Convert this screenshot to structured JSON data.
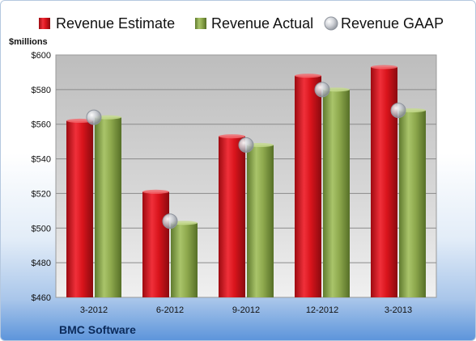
{
  "chart_data": {
    "type": "bar",
    "categories": [
      "3-2012",
      "6-2012",
      "9-2012",
      "12-2012",
      "3-2013"
    ],
    "series": [
      {
        "name": "Revenue Estimate",
        "values": [
          562,
          521,
          553,
          588,
          593
        ],
        "color": "#d9141c"
      },
      {
        "name": "Revenue Actual",
        "values": [
          564,
          503,
          548,
          580,
          568
        ],
        "color": "#8faa4e"
      },
      {
        "name": "Revenue GAAP",
        "values": [
          564,
          504,
          548,
          580,
          568
        ],
        "color": "#b8bcc4"
      }
    ],
    "ylabel": "$millions",
    "ylim": [
      460,
      600
    ],
    "yticks": [
      "$460",
      "$480",
      "$500",
      "$520",
      "$540",
      "$560",
      "$580",
      "$600"
    ],
    "company": "BMC Software",
    "legend_position": "top",
    "grid": true
  }
}
